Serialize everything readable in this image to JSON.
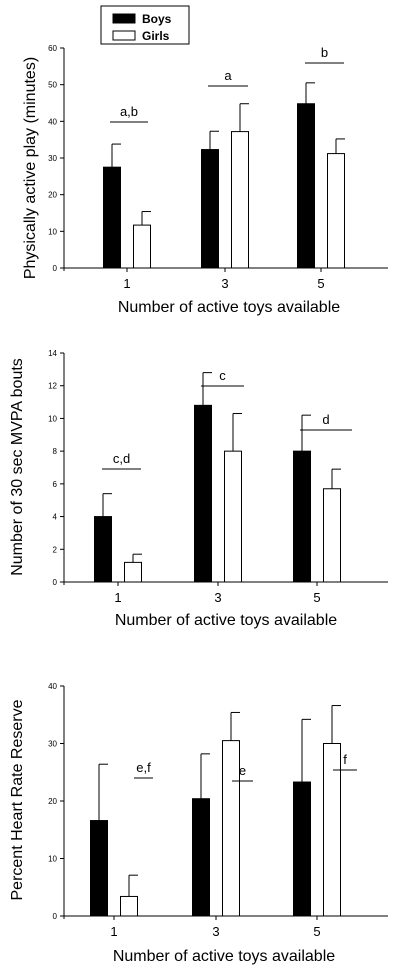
{
  "legend": {
    "items": [
      {
        "label": "Boys",
        "color": "#000000"
      },
      {
        "label": "Girls",
        "color": "#ffffff"
      }
    ]
  },
  "chart_data": [
    {
      "type": "bar",
      "categories": [
        "1",
        "3",
        "5"
      ],
      "series": [
        {
          "name": "Boys",
          "values": [
            27.5,
            32.3,
            44.8
          ],
          "errors": [
            6.3,
            5.0,
            5.7
          ]
        },
        {
          "name": "Girls",
          "values": [
            11.7,
            37.2,
            31.2
          ],
          "errors": [
            3.7,
            7.6,
            4.0
          ]
        }
      ],
      "annotations": [
        "a,b",
        "a",
        "b"
      ],
      "xlabel": "Number of active toys available",
      "ylabel": "Physically active play (minutes)",
      "ylim": [
        0,
        60
      ],
      "yticks": [
        "0",
        "10",
        "20",
        "30",
        "40",
        "50",
        "60"
      ]
    },
    {
      "type": "bar",
      "categories": [
        "1",
        "3",
        "5"
      ],
      "series": [
        {
          "name": "Boys",
          "values": [
            4.0,
            10.8,
            8.0
          ],
          "errors": [
            1.4,
            2.0,
            2.2
          ]
        },
        {
          "name": "Girls",
          "values": [
            1.2,
            8.0,
            5.7
          ],
          "errors": [
            0.5,
            2.3,
            1.2
          ]
        }
      ],
      "annotations": [
        "c,d",
        "c",
        "d"
      ],
      "xlabel": "Number of active toys available",
      "ylabel": "Number of 30 sec MVPA bouts",
      "ylim": [
        0,
        14
      ],
      "yticks": [
        "0",
        "2",
        "4",
        "6",
        "8",
        "10",
        "12",
        "14"
      ]
    },
    {
      "type": "bar",
      "categories": [
        "1",
        "3",
        "5"
      ],
      "series": [
        {
          "name": "Boys",
          "values": [
            16.6,
            20.4,
            23.3
          ],
          "errors": [
            9.8,
            7.8,
            10.9
          ]
        },
        {
          "name": "Girls",
          "values": [
            3.4,
            30.5,
            30.0
          ],
          "errors": [
            3.7,
            4.9,
            6.6
          ]
        }
      ],
      "annotations": [
        "e,f",
        "e",
        "f"
      ],
      "xlabel": "Number of active toys available",
      "ylabel": "Percent Heart Rate Reserve",
      "ylim": [
        0,
        40
      ],
      "yticks": [
        "0",
        "10",
        "20",
        "30",
        "40"
      ]
    }
  ]
}
